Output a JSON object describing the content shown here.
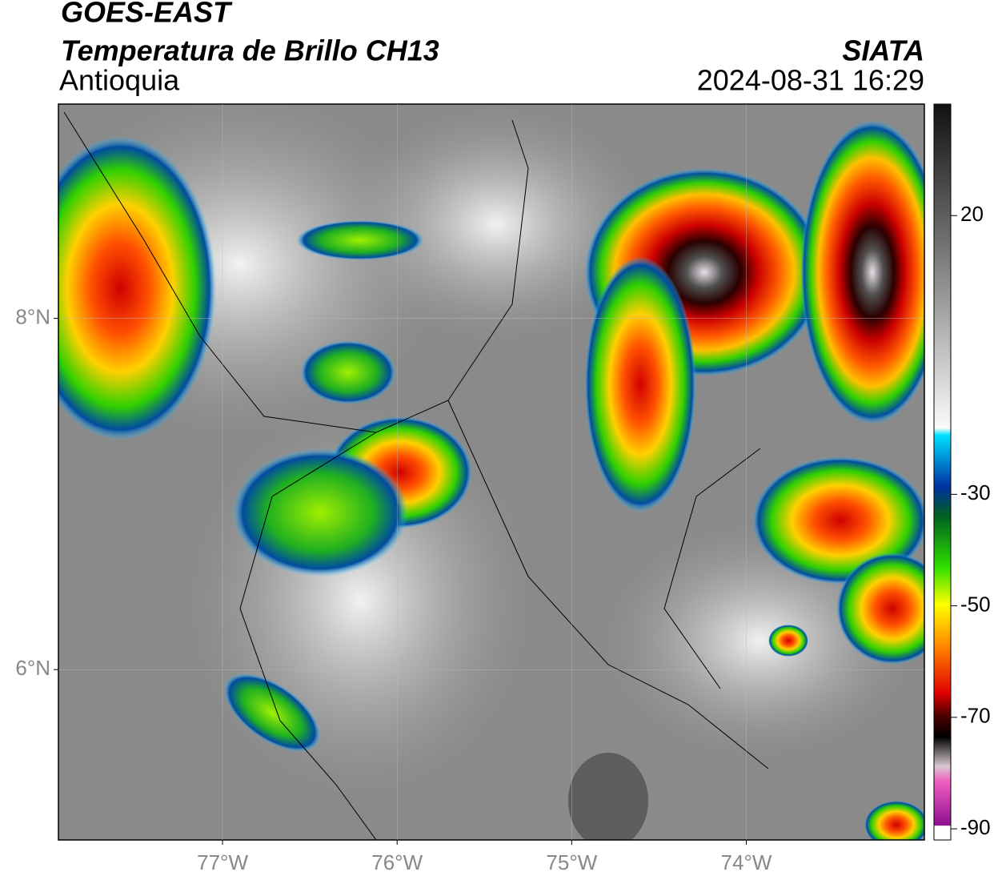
{
  "header": {
    "title": "GOES-EAST",
    "subtitle": "Temperatura de Brillo CH13",
    "region": "Antioquia",
    "source": "SIATA",
    "datetime": "2024-08-31 16:29"
  },
  "map": {
    "lon_lim": [
      -77.94,
      -72.98
    ],
    "lat_lim": [
      5.03,
      9.22
    ],
    "lon_ticks": [
      {
        "value": -77,
        "label": "77°W"
      },
      {
        "value": -76,
        "label": "76°W"
      },
      {
        "value": -75,
        "label": "75°W"
      },
      {
        "value": -74,
        "label": "74°W"
      }
    ],
    "lat_ticks": [
      {
        "value": 8,
        "label": "8°N"
      },
      {
        "value": 6,
        "label": "6°N"
      }
    ]
  },
  "colorbar": {
    "lim": [
      -92,
      40
    ],
    "ticks": [
      20,
      -30,
      -50,
      -70,
      -90
    ]
  }
}
